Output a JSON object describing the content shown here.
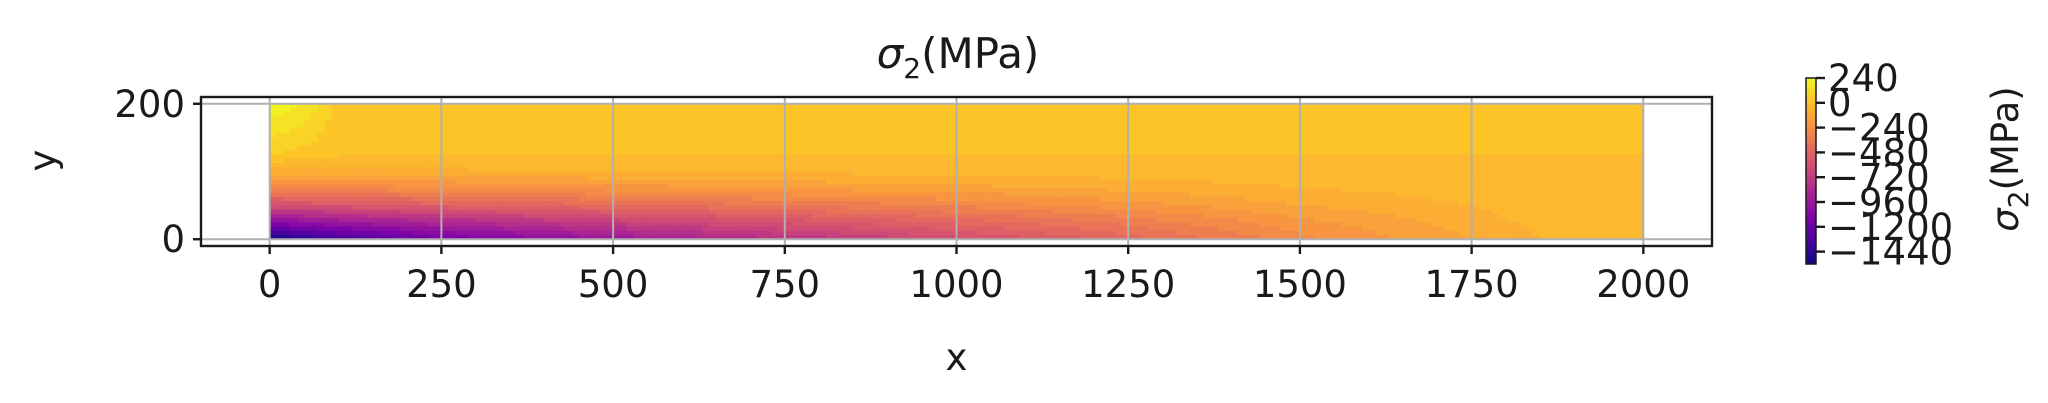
{
  "chart_data": {
    "type": "heatmap",
    "subtype": "filled-contour",
    "title_symbol": "σ",
    "title_subscript": "2",
    "title_unit": "(MPa)",
    "xlabel": "x",
    "ylabel": "y",
    "xlim": [
      -100,
      2100
    ],
    "ylim": [
      -10,
      210
    ],
    "domain": {
      "x": [
        0,
        2000
      ],
      "y": [
        0,
        200
      ]
    },
    "x_ticks": [
      0,
      250,
      500,
      750,
      1000,
      1250,
      1500,
      1750,
      2000
    ],
    "y_ticks": [
      0,
      200
    ],
    "grid": true,
    "colormap": "plasma",
    "colorbar": {
      "label_symbol": "σ",
      "label_subscript": "2",
      "label_unit": "(MPa)",
      "min": -1560,
      "max": 240,
      "ticks": [
        {
          "value": 240,
          "label": "240"
        },
        {
          "value": 0,
          "label": "0"
        },
        {
          "value": -240,
          "label": "−240"
        },
        {
          "value": -480,
          "label": "−480"
        },
        {
          "value": -720,
          "label": "−720"
        },
        {
          "value": -960,
          "label": "−960"
        },
        {
          "value": -1200,
          "label": "−1200"
        },
        {
          "value": -1440,
          "label": "−1440"
        }
      ]
    },
    "field_samples": {
      "x": [
        0,
        50,
        100,
        250,
        500,
        750,
        1000,
        1250,
        1500,
        1750,
        1850,
        2000
      ],
      "y": [
        0,
        25,
        50,
        75,
        100,
        125,
        200
      ],
      "note_units": "MPa",
      "values": [
        [
          -1560,
          -1450,
          -1350,
          -1150,
          -950,
          -780,
          -620,
          -450,
          -260,
          -120,
          -60,
          0
        ],
        [
          -1050,
          -1000,
          -950,
          -850,
          -700,
          -580,
          -460,
          -340,
          -200,
          -90,
          -40,
          0
        ],
        [
          -600,
          -580,
          -560,
          -500,
          -430,
          -360,
          -290,
          -210,
          -120,
          -60,
          -20,
          0
        ],
        [
          -300,
          -290,
          -280,
          -250,
          -210,
          -170,
          -140,
          -100,
          -60,
          -30,
          -10,
          0
        ],
        [
          -90,
          -85,
          -80,
          -70,
          -60,
          -50,
          -40,
          -30,
          -20,
          -10,
          -5,
          0
        ],
        [
          60,
          40,
          10,
          0,
          0,
          0,
          0,
          0,
          0,
          0,
          0,
          0
        ],
        [
          230,
          180,
          40,
          0,
          0,
          0,
          0,
          0,
          0,
          0,
          0,
          0
        ]
      ]
    }
  }
}
